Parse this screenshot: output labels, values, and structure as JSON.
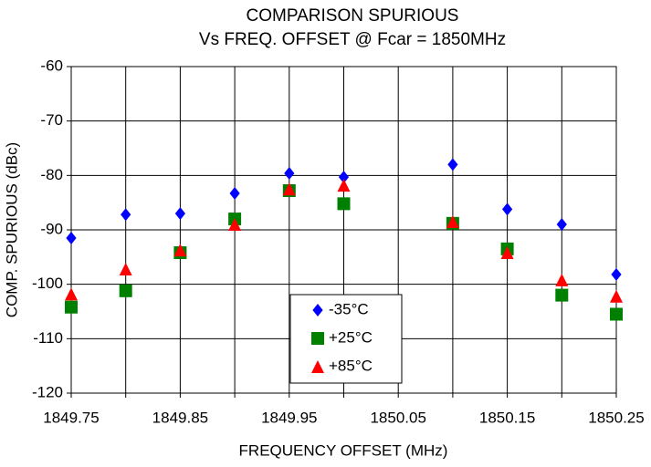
{
  "chart_data": {
    "type": "scatter",
    "title": [
      "COMPARISON SPURIOUS",
      "Vs FREQ. OFFSET @ Fcar = 1850MHz"
    ],
    "x_label": "FREQUENCY OFFSET (MHz)",
    "y_label": "COMP. SPURIOUS (dBc)",
    "x": [
      1849.75,
      1849.8,
      1849.85,
      1849.9,
      1849.95,
      1850.0,
      1850.1,
      1850.15,
      1850.2,
      1850.25
    ],
    "series": [
      {
        "name": "-35°C",
        "color": "#0000ff",
        "marker": "diamond",
        "values": [
          -91.5,
          -87.2,
          -87,
          -83.3,
          -79.6,
          -80.3,
          -78,
          -86.2,
          -89,
          -98.2
        ]
      },
      {
        "name": "+25°C",
        "color": "#008000",
        "marker": "square",
        "values": [
          -104.2,
          -101.2,
          -94.2,
          -88,
          -82.8,
          -85.2,
          -88.8,
          -93.5,
          -102,
          -105.5
        ]
      },
      {
        "name": "+85°C",
        "color": "#ff0000",
        "marker": "triangle",
        "values": [
          -101.8,
          -97.2,
          -93.7,
          -89,
          -82.5,
          -81.8,
          -88.5,
          -94.2,
          -99.2,
          -102.2
        ]
      }
    ],
    "xlim": [
      1849.75,
      1850.25
    ],
    "xticks": [
      1849.75,
      1849.85,
      1849.95,
      1850.05,
      1850.15,
      1850.25
    ],
    "xminor_ticks": [
      1849.8,
      1849.9,
      1850.0,
      1850.1,
      1850.2
    ],
    "ylim": [
      -120,
      -60
    ],
    "yticks": [
      -120,
      -110,
      -100,
      -90,
      -80,
      -70,
      -60
    ],
    "grid": true,
    "legend": "bottom"
  }
}
